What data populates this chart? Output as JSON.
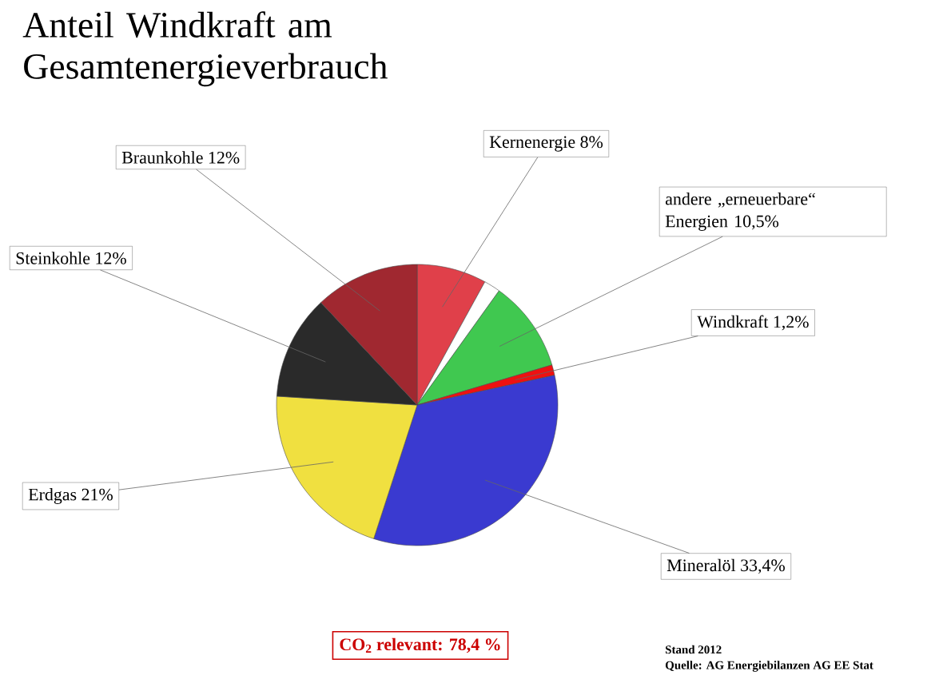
{
  "chart_data": {
    "type": "pie",
    "title": "Anteil Windkraft am Gesamtenergieverbrauch",
    "categories": [
      "Kernenergie",
      null,
      "andere „erneuerbare“ Energien",
      "Windkraft",
      "Mineralöl",
      "Erdgas",
      "Steinkohle",
      "Braunkohle"
    ],
    "values": [
      8,
      1.9,
      10.5,
      1.2,
      33.4,
      21,
      12,
      12
    ],
    "colors": [
      "#e0404a",
      "#ffffff",
      "#40c850",
      "#ee1111",
      "#3a3ad0",
      "#f0e040",
      "#2a2a2a",
      "#a02830"
    ],
    "value_labels": [
      "8%",
      null,
      "10,5%",
      "1,2%",
      "33,4%",
      "21%",
      "12%",
      "12%"
    ],
    "annotations": [
      "CO$_{2}$ relevant: 78,4 %",
      "Stand 2012",
      "Quelle: AG Energiebilanzen AG EE Stat"
    ]
  }
}
